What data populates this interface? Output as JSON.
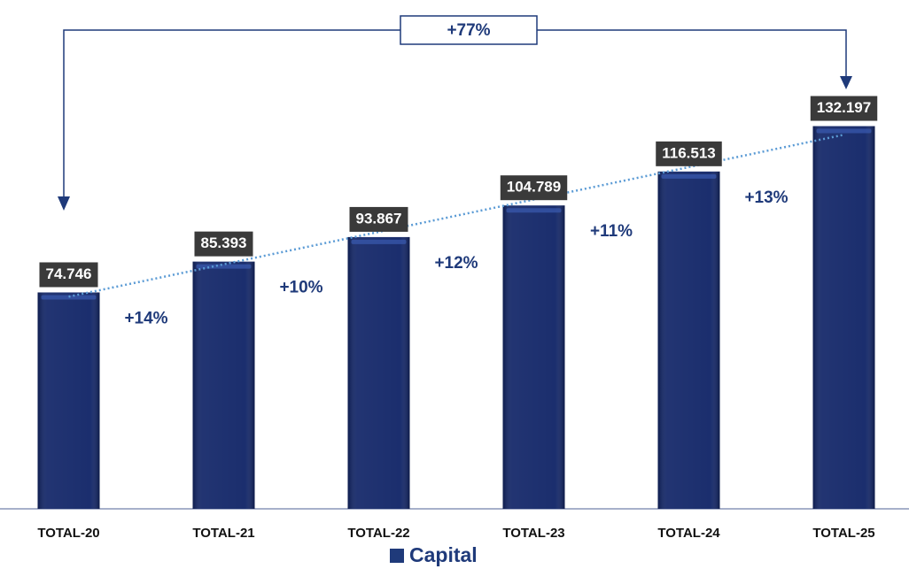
{
  "chart_data": {
    "type": "bar",
    "categories": [
      "TOTAL-20",
      "TOTAL-21",
      "TOTAL-22",
      "TOTAL-23",
      "TOTAL-24",
      "TOTAL-25"
    ],
    "series": [
      {
        "name": "Capital",
        "color": "#0f2366",
        "values": [
          74.746,
          85.393,
          93.867,
          104.789,
          116.513,
          132.197
        ]
      }
    ],
    "ylim": [
      0,
      140
    ],
    "trendline": true,
    "legend": "bottom",
    "annotations": {
      "growth": [
        "+14%",
        "+10%",
        "+12%",
        "+11%",
        "+13%"
      ],
      "total": "+77%"
    }
  }
}
